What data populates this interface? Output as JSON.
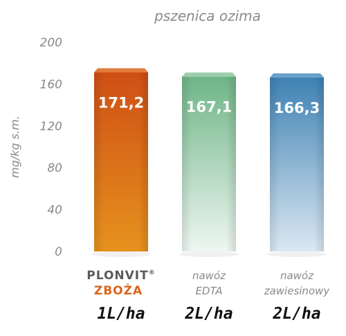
{
  "chart_data": {
    "type": "bar",
    "title": "pszenica ozima",
    "ylabel": "mg/kg s.m.",
    "xlabel": "",
    "ylim": [
      0,
      200
    ],
    "yticks": [
      "0",
      "40",
      "80",
      "120",
      "160",
      "200"
    ],
    "grid": false,
    "categories": [
      {
        "lines": [
          "PLONVIT",
          "ZBOŻA"
        ],
        "registered_mark": "®",
        "style": "brand",
        "dose": "1L/ha"
      },
      {
        "lines": [
          "nawóz",
          "EDTA"
        ],
        "style": "italic",
        "dose": "2L/ha"
      },
      {
        "lines": [
          "nawóz",
          "zawiesinowy"
        ],
        "style": "italic",
        "dose": "2L/ha"
      }
    ],
    "values": [
      171.2,
      167.1,
      166.3
    ],
    "value_labels": [
      "171,2",
      "167,1",
      "166,3"
    ],
    "colors": [
      "#d9661a",
      "#8cc59d",
      "#4f8fbd"
    ]
  }
}
